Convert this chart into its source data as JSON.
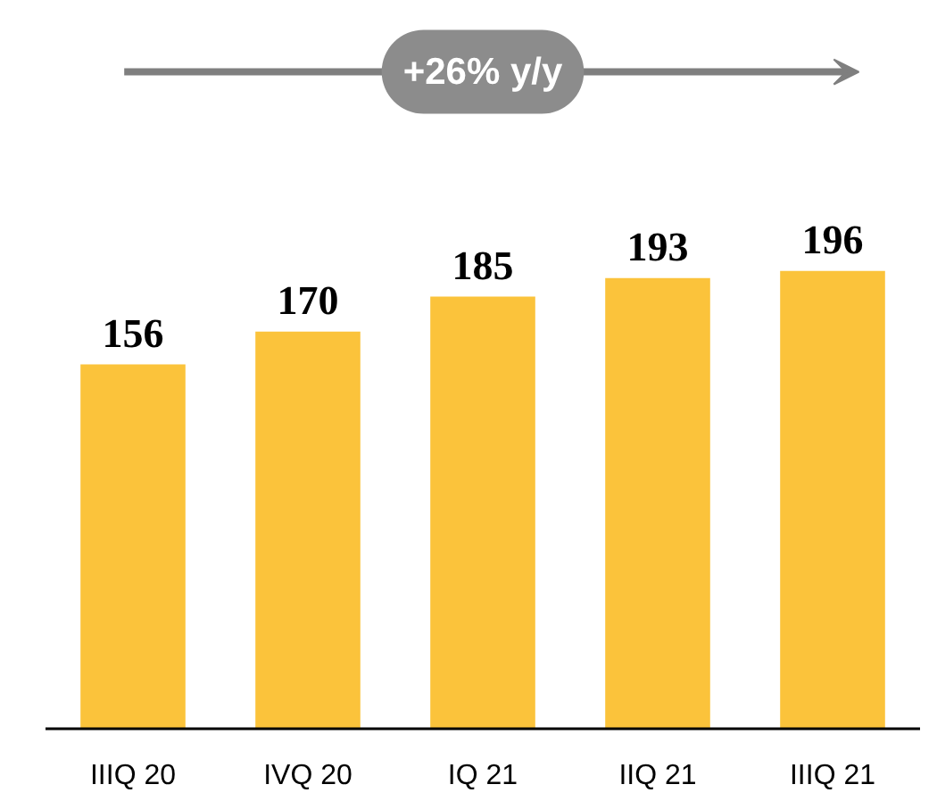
{
  "chart_data": {
    "type": "bar",
    "categories": [
      "IIIQ 20",
      "IVQ 20",
      "IQ 21",
      "IIQ 21",
      "IIIQ 21"
    ],
    "values": [
      156,
      170,
      185,
      193,
      196
    ],
    "color": "#fbc33b",
    "data_labels": true,
    "annotations": [
      "+26% y/y"
    ]
  }
}
